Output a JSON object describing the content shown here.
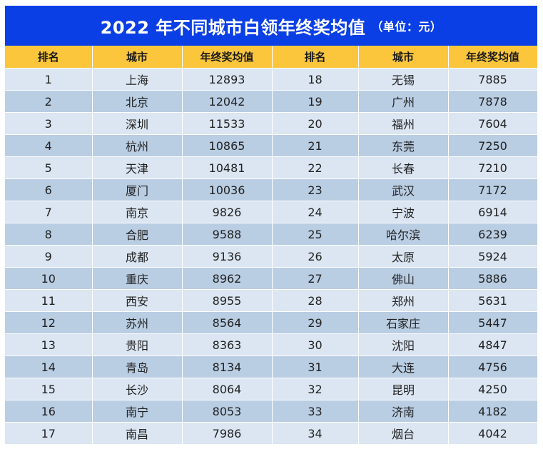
{
  "title": {
    "main": "2022 年不同城市白领年终奖均值",
    "unit": "（单位：元）"
  },
  "colors": {
    "title_bg": "#0a3fe6",
    "header_bg": "#fbc63c",
    "row_light": "#dbe6f2",
    "row_dark": "#b9cde3"
  },
  "headers": [
    "排名",
    "城市",
    "年终奖均值",
    "排名",
    "城市",
    "年终奖均值"
  ],
  "rows": [
    [
      "1",
      "上海",
      "12893",
      "18",
      "无锡",
      "7885"
    ],
    [
      "2",
      "北京",
      "12042",
      "19",
      "广州",
      "7878"
    ],
    [
      "3",
      "深圳",
      "11533",
      "20",
      "福州",
      "7604"
    ],
    [
      "4",
      "杭州",
      "10865",
      "21",
      "东莞",
      "7250"
    ],
    [
      "5",
      "天津",
      "10481",
      "22",
      "长春",
      "7210"
    ],
    [
      "6",
      "厦门",
      "10036",
      "23",
      "武汉",
      "7172"
    ],
    [
      "7",
      "南京",
      "9826",
      "24",
      "宁波",
      "6914"
    ],
    [
      "8",
      "合肥",
      "9588",
      "25",
      "哈尔滨",
      "6239"
    ],
    [
      "9",
      "成都",
      "9136",
      "26",
      "太原",
      "5924"
    ],
    [
      "10",
      "重庆",
      "8962",
      "27",
      "佛山",
      "5886"
    ],
    [
      "11",
      "西安",
      "8955",
      "28",
      "郑州",
      "5631"
    ],
    [
      "12",
      "苏州",
      "8564",
      "29",
      "石家庄",
      "5447"
    ],
    [
      "13",
      "贵阳",
      "8363",
      "30",
      "沈阳",
      "4847"
    ],
    [
      "14",
      "青岛",
      "8134",
      "31",
      "大连",
      "4756"
    ],
    [
      "15",
      "长沙",
      "8064",
      "32",
      "昆明",
      "4250"
    ],
    [
      "16",
      "南宁",
      "8053",
      "33",
      "济南",
      "4182"
    ],
    [
      "17",
      "南昌",
      "7986",
      "34",
      "烟台",
      "4042"
    ]
  ]
}
